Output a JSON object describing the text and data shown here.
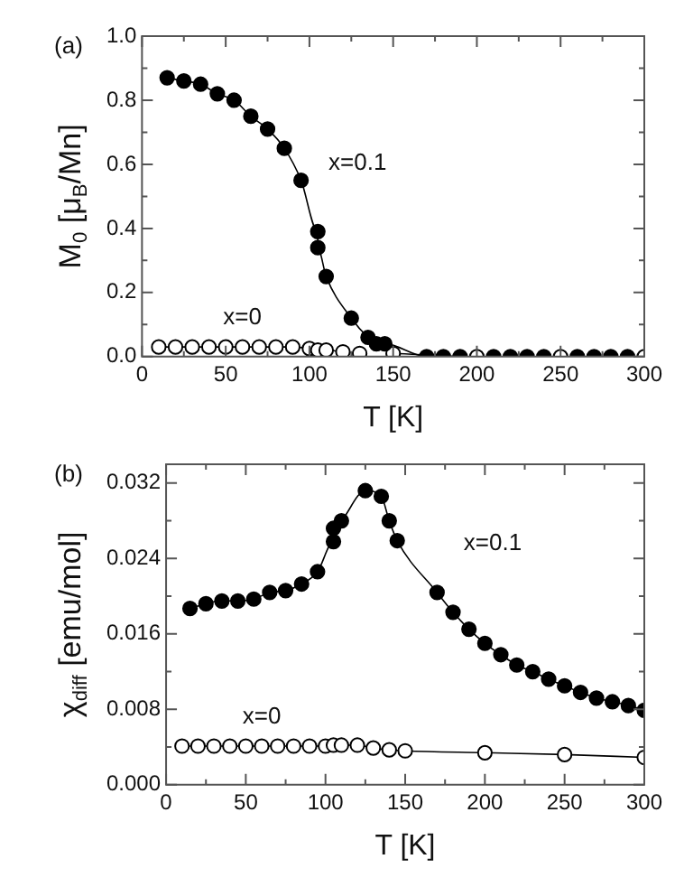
{
  "chart_data": [
    {
      "type": "line",
      "xlabel": "T [K]",
      "ylabel": "M$_{0}$ [μ$_{B}$/Mn]",
      "xlim": [
        0,
        300
      ],
      "ylim": [
        0,
        1
      ],
      "xticks": [
        0,
        {
          "value": 25,
          "label": null
        },
        50,
        {
          "value": 75,
          "label": null
        },
        100,
        {
          "value": 125,
          "label": null
        },
        150,
        {
          "value": 175,
          "label": null
        },
        200,
        {
          "value": 225,
          "label": null
        },
        250,
        {
          "value": 275,
          "label": null
        },
        300
      ],
      "yticks": [
        {
          "value": 0,
          "label": "0.0"
        },
        {
          "value": 0.1,
          "label": null
        },
        {
          "value": 0.2,
          "label": "0.2"
        },
        {
          "value": 0.3,
          "label": null
        },
        {
          "value": 0.4,
          "label": "0.4"
        },
        {
          "value": 0.5,
          "label": null
        },
        {
          "value": 0.6,
          "label": "0.6"
        },
        {
          "value": 0.7,
          "label": null
        },
        {
          "value": 0.8,
          "label": "0.8"
        },
        {
          "value": 0.9,
          "label": null
        },
        {
          "value": 1,
          "label": "1.0"
        }
      ],
      "grid": false,
      "legend": false,
      "marker": "circle",
      "series": [
        {
          "name": "x=0.1",
          "color": "#000000",
          "x": [
            15,
            25,
            35,
            45,
            55,
            65,
            75,
            85,
            95,
            105,
            105,
            110,
            125,
            135,
            140,
            145,
            170,
            180,
            190,
            210,
            220,
            230,
            240,
            260,
            270,
            280,
            290
          ],
          "values": [
            0.87,
            0.86,
            0.85,
            0.82,
            0.8,
            0.75,
            0.71,
            0.65,
            0.55,
            0.39,
            0.34,
            0.25,
            0.12,
            0.06,
            0.04,
            0.04,
            0,
            0,
            0,
            0,
            0,
            0,
            0,
            0,
            0,
            0,
            0
          ]
        },
        {
          "name": "x=0",
          "color": "#000000",
          "x": [
            10,
            20,
            30,
            40,
            50,
            60,
            70,
            80,
            90,
            100,
            105,
            110,
            120,
            130,
            140,
            150,
            200,
            250,
            300
          ],
          "values": [
            0.03,
            0.03,
            0.03,
            0.03,
            0.03,
            0.03,
            0.03,
            0.03,
            0.03,
            0.025,
            0.02,
            0.02,
            0.015,
            0.01,
            null,
            0.01,
            0,
            0,
            0
          ]
        }
      ],
      "annotations": [
        "(a)"
      ]
    },
    {
      "type": "line",
      "xlabel": "T [K]",
      "ylabel": "χ$_{diff}$ [emu/mol]",
      "xlim": [
        0,
        300
      ],
      "ylim": [
        0,
        0.034
      ],
      "xticks": [
        0,
        {
          "value": 25,
          "label": null
        },
        50,
        {
          "value": 75,
          "label": null
        },
        100,
        {
          "value": 125,
          "label": null
        },
        150,
        {
          "value": 175,
          "label": null
        },
        200,
        {
          "value": 225,
          "label": null
        },
        250,
        {
          "value": 275,
          "label": null
        },
        300
      ],
      "yticks": [
        {
          "value": 0,
          "label": "0.000"
        },
        {
          "value": 0.004,
          "label": null
        },
        {
          "value": 0.008,
          "label": "0.008"
        },
        {
          "value": 0.012,
          "label": null
        },
        {
          "value": 0.016,
          "label": "0.016"
        },
        {
          "value": 0.02,
          "label": null
        },
        {
          "value": 0.024,
          "label": "0.024"
        },
        {
          "value": 0.028,
          "label": null
        },
        {
          "value": 0.032,
          "label": "0.032"
        }
      ],
      "grid": false,
      "legend": false,
      "marker": "circle",
      "series": [
        {
          "name": "x=0.1",
          "color": "#000000",
          "x": [
            15,
            25,
            35,
            45,
            55,
            65,
            75,
            85,
            95,
            105,
            105,
            110,
            125,
            135,
            140,
            145,
            170,
            180,
            190,
            200,
            210,
            220,
            230,
            240,
            250,
            260,
            270,
            280,
            290,
            300
          ],
          "values": [
            0.0187,
            0.0192,
            0.0195,
            0.0195,
            0.0197,
            0.0204,
            0.0206,
            0.0213,
            0.0226,
            0.0258,
            0.0272,
            0.028,
            0.0312,
            0.0306,
            0.028,
            0.0259,
            0.0204,
            0.0183,
            0.0165,
            0.015,
            0.0138,
            0.0127,
            0.012,
            0.0112,
            0.0105,
            0.0098,
            0.0092,
            0.0088,
            0.0084,
            0.0079
          ]
        },
        {
          "name": "x=0",
          "color": "#000000",
          "x": [
            10,
            20,
            30,
            40,
            50,
            60,
            70,
            80,
            90,
            100,
            105,
            110,
            120,
            130,
            140,
            150,
            200,
            250,
            300
          ],
          "values": [
            0.0041,
            0.0041,
            0.0041,
            0.0041,
            0.0041,
            0.0041,
            0.0041,
            0.0041,
            0.0041,
            0.0041,
            0.0042,
            0.0042,
            0.0042,
            0.0039,
            0.0037,
            0.0036,
            0.0034,
            0.0032,
            0.0029
          ]
        }
      ],
      "annotations": [
        "(b)"
      ]
    }
  ]
}
